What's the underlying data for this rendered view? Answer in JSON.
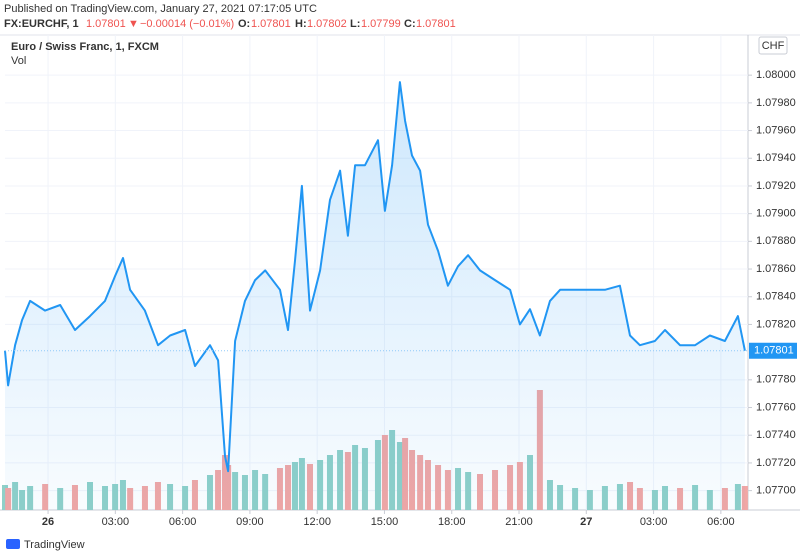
{
  "header": {
    "published": "Published on TradingView.com, January 27, 2021 07:17:05 UTC",
    "symbol": "FX:EURCHF, 1",
    "last": "1.07801",
    "arrow": "▼",
    "change": "−0.00014 (−0.01%)",
    "open_label": "O:",
    "open": "1.07801",
    "high_label": "H:",
    "high": "1.07802",
    "low_label": "L:",
    "low": "1.07799",
    "close_label": "C:",
    "close": "1.07801"
  },
  "chart_data": {
    "type": "line",
    "title": "Euro / Swiss Franc, 1, FXCM",
    "volume_label": "Vol",
    "currency": "CHF",
    "color": "#2196f3",
    "last_price": 1.07801,
    "x": [
      -1.92,
      -1.78,
      -1.47,
      -1.16,
      -0.8,
      -0.13,
      0.54,
      1.2,
      1.87,
      2.54,
      2.99,
      3.34,
      3.66,
      4.32,
      4.9,
      5.44,
      6.11,
      6.55,
      7.22,
      7.58,
      7.89,
      8.03,
      8.34,
      8.78,
      9.23,
      9.68,
      10.34,
      10.7,
      11.01,
      11.32,
      11.68,
      12.13,
      12.57,
      13.02,
      13.37,
      13.69,
      14.13,
      14.71,
      15.02,
      15.34,
      15.69,
      15.92,
      16.23,
      16.59,
      16.94,
      17.39,
      17.83,
      18.28,
      18.73,
      19.26,
      19.93,
      20.6,
      21.04,
      21.49,
      21.93,
      22.38,
      22.83,
      23.5,
      24.16,
      24.83,
      25.5,
      25.95,
      26.39,
      27.06,
      27.51,
      28.18,
      28.85,
      29.51,
      30.18,
      30.76,
      31.07
    ],
    "values": [
      1.07801,
      1.07776,
      1.07805,
      1.07823,
      1.07837,
      1.0783,
      1.07834,
      1.07816,
      1.07826,
      1.07837,
      1.07855,
      1.07868,
      1.07845,
      1.0783,
      1.07805,
      1.07812,
      1.07816,
      1.0779,
      1.07805,
      1.07794,
      1.07725,
      1.07714,
      1.07808,
      1.07837,
      1.07852,
      1.07859,
      1.07845,
      1.07816,
      1.07866,
      1.0792,
      1.0783,
      1.07859,
      1.0791,
      1.07931,
      1.07884,
      1.07935,
      1.07935,
      1.07953,
      1.07902,
      1.07935,
      1.07995,
      1.07967,
      1.07942,
      1.07931,
      1.07892,
      1.07873,
      1.07848,
      1.07862,
      1.0787,
      1.07859,
      1.07852,
      1.07845,
      1.0782,
      1.07831,
      1.07812,
      1.07837,
      1.07845,
      1.07845,
      1.07845,
      1.07845,
      1.07848,
      1.07812,
      1.07805,
      1.07808,
      1.07816,
      1.07805,
      1.07805,
      1.07812,
      1.07808,
      1.07826,
      1.07801
    ],
    "volume": {
      "up_color": "#8fd0c8",
      "down_color": "#f2a6a4",
      "values": [
        25,
        22,
        28,
        20,
        24,
        26,
        22,
        25,
        28,
        24,
        26,
        30,
        22,
        24,
        28,
        26,
        24,
        30,
        35,
        40,
        55,
        45,
        38,
        35,
        40,
        36,
        42,
        45,
        48,
        52,
        46,
        50,
        55,
        60,
        58,
        65,
        62,
        70,
        75,
        80,
        68,
        72,
        60,
        55,
        50,
        45,
        40,
        42,
        38,
        36,
        40,
        45,
        48,
        55,
        120,
        30,
        25,
        22,
        20,
        24,
        26,
        28,
        22,
        20,
        24,
        22,
        25,
        20,
        22,
        26,
        24
      ]
    },
    "xlim": [
      -1.92,
      31.21
    ],
    "ylim": [
      1.07686,
      1.08029
    ],
    "xticks": [
      {
        "value": 0,
        "label": "26"
      },
      {
        "value": 3,
        "label": "03:00"
      },
      {
        "value": 6,
        "label": "06:00"
      },
      {
        "value": 9,
        "label": "09:00"
      },
      {
        "value": 12,
        "label": "12:00"
      },
      {
        "value": 15,
        "label": "15:00"
      },
      {
        "value": 18,
        "label": "18:00"
      },
      {
        "value": 21,
        "label": "21:00"
      },
      {
        "value": 24,
        "label": "27"
      },
      {
        "value": 27,
        "label": "03:00"
      },
      {
        "value": 30,
        "label": "06:00"
      }
    ],
    "yticks": [
      {
        "value": 1.077,
        "label": "1.07700"
      },
      {
        "value": 1.0772,
        "label": "1.07720"
      },
      {
        "value": 1.0774,
        "label": "1.07740"
      },
      {
        "value": 1.0776,
        "label": "1.07760"
      },
      {
        "value": 1.0778,
        "label": "1.07780"
      },
      {
        "value": 1.0782,
        "label": "1.07820"
      },
      {
        "value": 1.0784,
        "label": "1.07840"
      },
      {
        "value": 1.0786,
        "label": "1.07860"
      },
      {
        "value": 1.0788,
        "label": "1.07880"
      },
      {
        "value": 1.079,
        "label": "1.07900"
      },
      {
        "value": 1.0792,
        "label": "1.07920"
      },
      {
        "value": 1.0794,
        "label": "1.07940"
      },
      {
        "value": 1.0796,
        "label": "1.07960"
      },
      {
        "value": 1.0798,
        "label": "1.07980"
      },
      {
        "value": 1.08,
        "label": "1.08000"
      }
    ],
    "grid": true
  },
  "footer": {
    "brand": "TradingView"
  }
}
